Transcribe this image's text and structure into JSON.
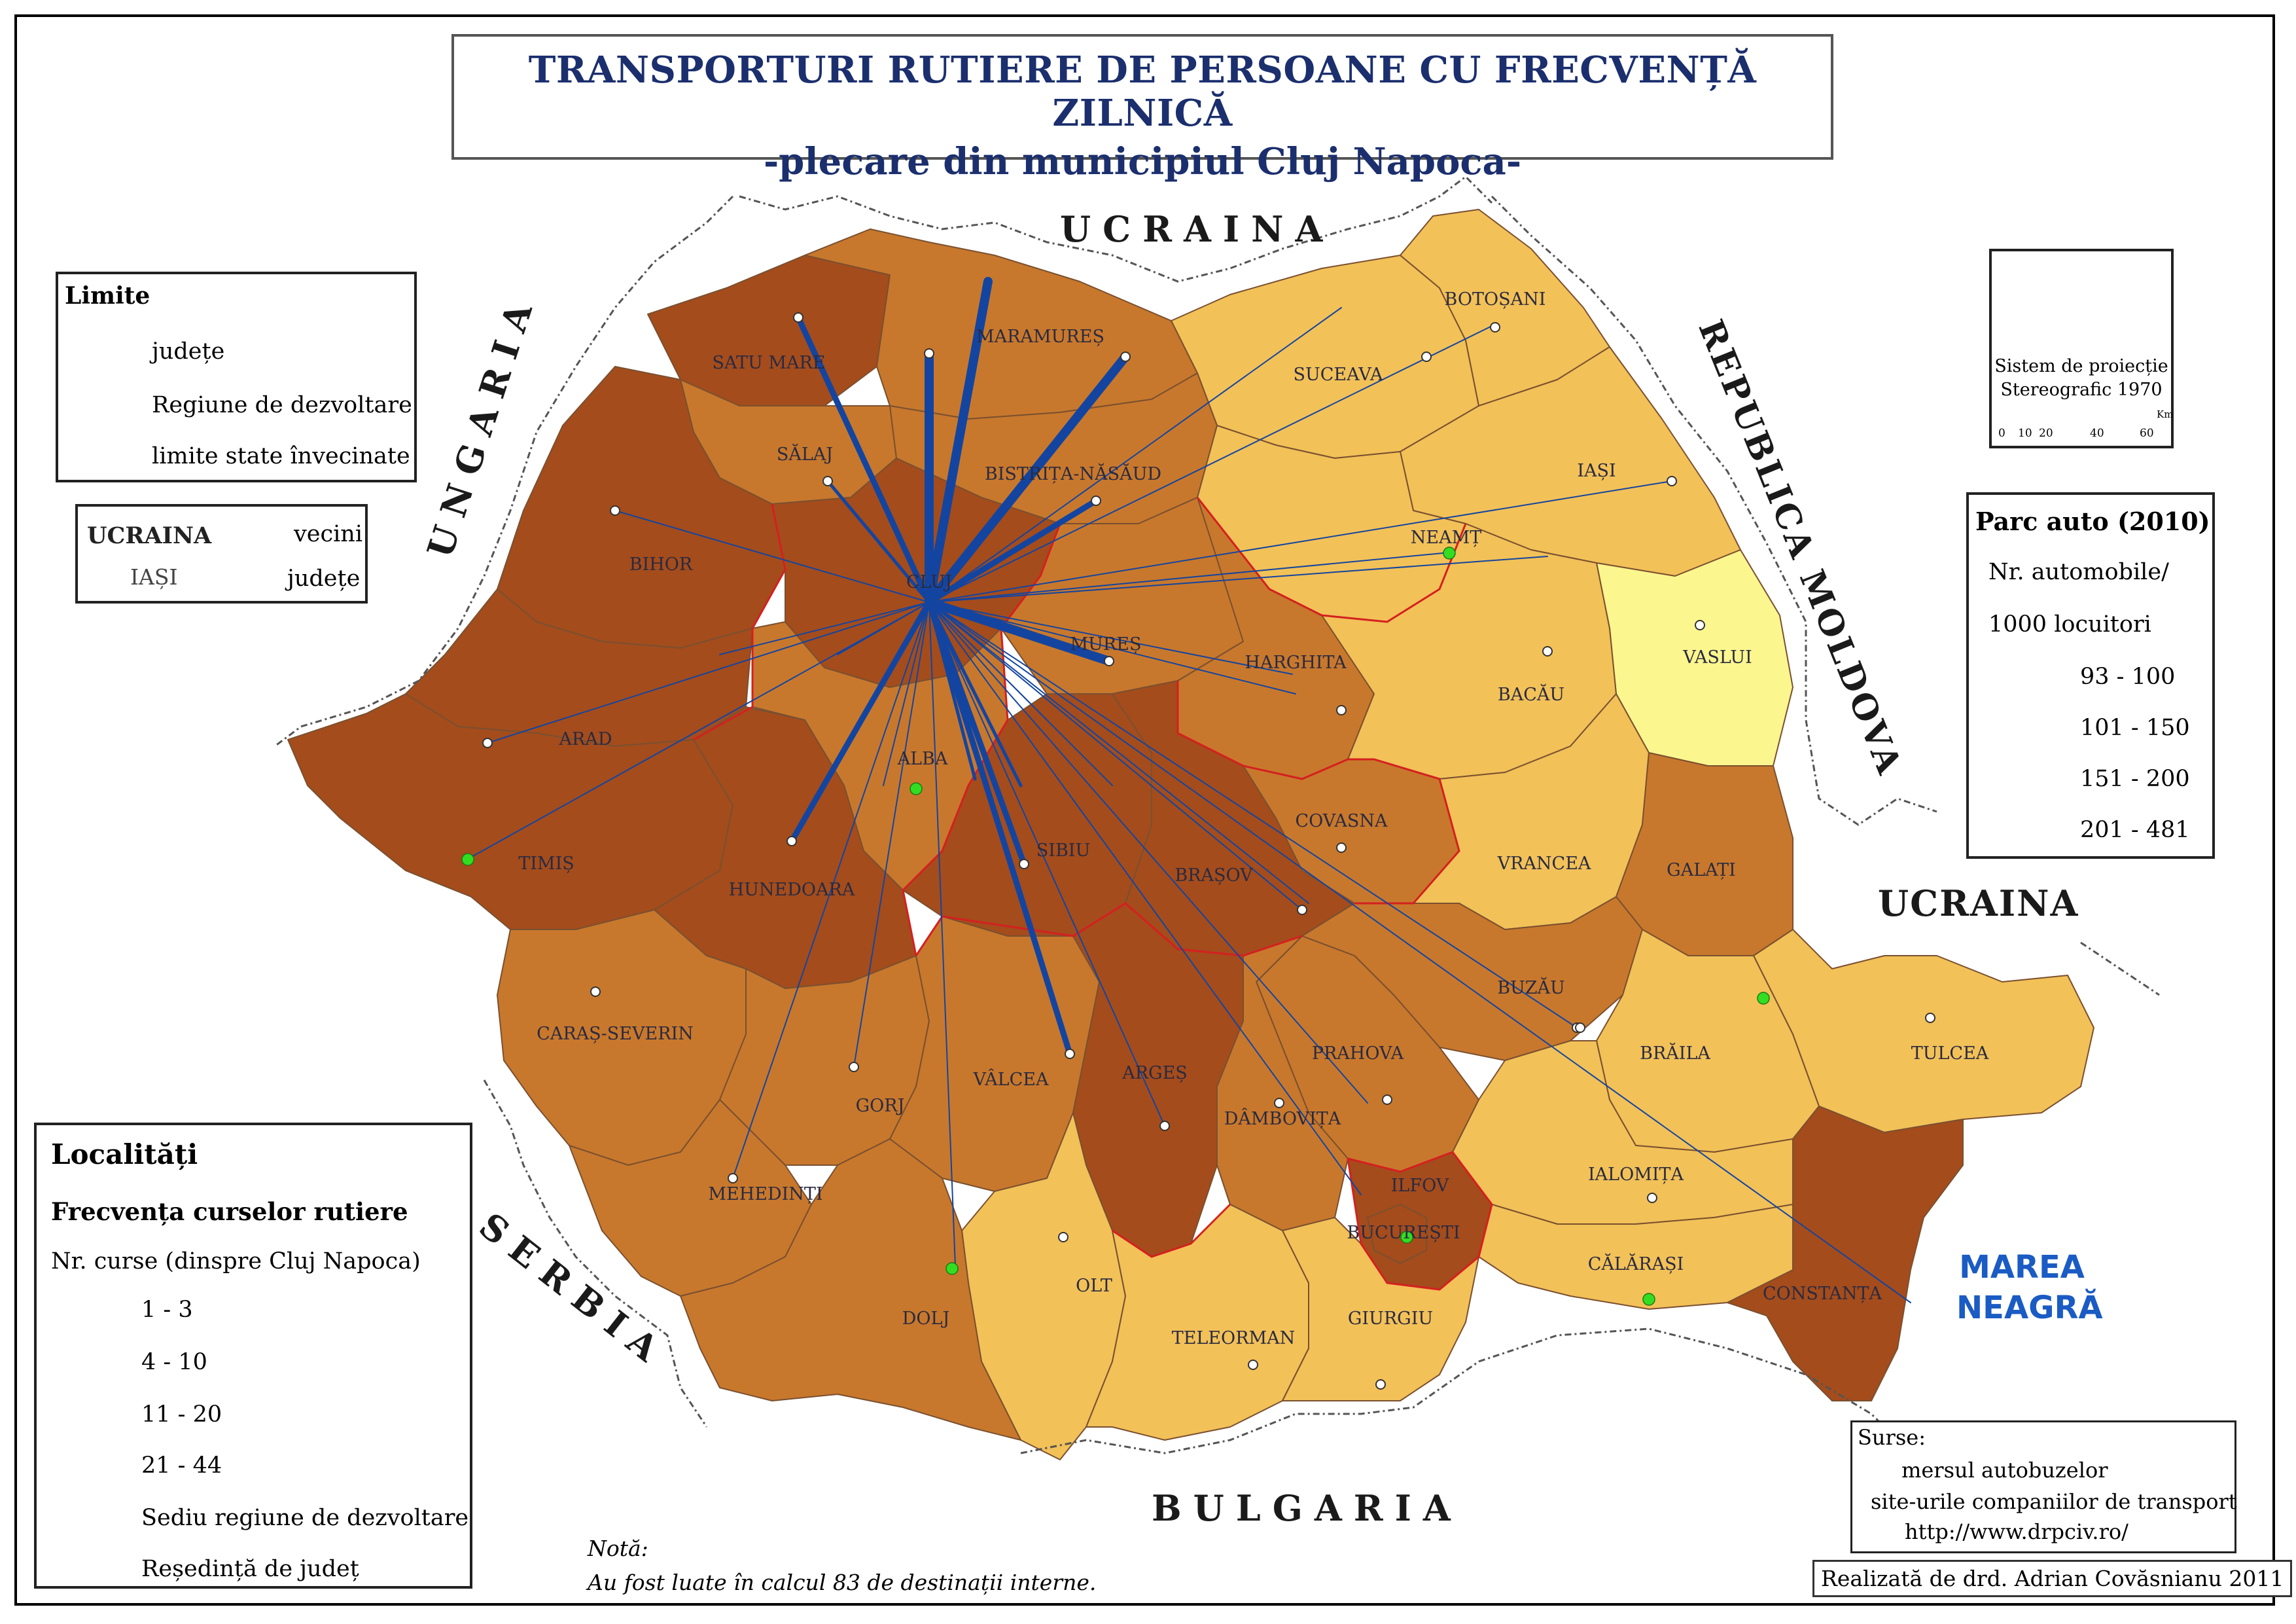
{
  "title": {
    "line1": "TRANSPORTURI RUTIERE DE PERSOANE CU FRECVENȚĂ ZILNICĂ",
    "line2": "-plecare din municipiul Cluj Napoca-"
  },
  "neighbors": {
    "north": "UCRAINA",
    "west": "UNGARIA",
    "east_moldova": "REPUBLICA MOLDOVA",
    "east_ukraine": "UCRAINA",
    "southwest": "SERBIA",
    "south": "BULGARIA",
    "sea": [
      "MAREA",
      "NEAGRĂ"
    ]
  },
  "counties": [
    {
      "name": "SATU MARE",
      "class": "201-481"
    },
    {
      "name": "MARAMUREȘ",
      "class": "151-200"
    },
    {
      "name": "SUCEAVA",
      "class": "101-150"
    },
    {
      "name": "BOTOȘANI",
      "class": "101-150"
    },
    {
      "name": "SĂLAJ",
      "class": "151-200"
    },
    {
      "name": "BISTRIȚA-NĂSĂUD",
      "class": "151-200"
    },
    {
      "name": "IAȘI",
      "class": "101-150"
    },
    {
      "name": "NEAMȚ",
      "class": "101-150"
    },
    {
      "name": "BIHOR",
      "class": "201-481"
    },
    {
      "name": "CLUJ",
      "class": "201-481"
    },
    {
      "name": "VASLUI",
      "class": "93-100"
    },
    {
      "name": "MUREȘ",
      "class": "151-200"
    },
    {
      "name": "HARGHITA",
      "class": "151-200"
    },
    {
      "name": "BACĂU",
      "class": "101-150"
    },
    {
      "name": "ARAD",
      "class": "201-481"
    },
    {
      "name": "ALBA",
      "class": "151-200"
    },
    {
      "name": "COVASNA",
      "class": "151-200"
    },
    {
      "name": "VRANCEA",
      "class": "101-150"
    },
    {
      "name": "GALAȚI",
      "class": "151-200"
    },
    {
      "name": "TIMIȘ",
      "class": "201-481"
    },
    {
      "name": "HUNEDOARA",
      "class": "201-481"
    },
    {
      "name": "SIBIU",
      "class": "201-481"
    },
    {
      "name": "BRAȘOV",
      "class": "201-481"
    },
    {
      "name": "BUZĂU",
      "class": "151-200"
    },
    {
      "name": "TULCEA",
      "class": "101-150"
    },
    {
      "name": "CARAȘ-SEVERIN",
      "class": "151-200"
    },
    {
      "name": "BRĂILA",
      "class": "101-150"
    },
    {
      "name": "GORJ",
      "class": "151-200"
    },
    {
      "name": "VÂLCEA",
      "class": "151-200"
    },
    {
      "name": "ARGEȘ",
      "class": "201-481"
    },
    {
      "name": "PRAHOVA",
      "class": "151-200"
    },
    {
      "name": "DÂMBOVIȚA",
      "class": "151-200"
    },
    {
      "name": "MEHEDINȚI",
      "class": "151-200"
    },
    {
      "name": "IALOMIȚA",
      "class": "101-150"
    },
    {
      "name": "ILFOV",
      "class": "201-481"
    },
    {
      "name": "BUCUREȘTI",
      "class": "201-481"
    },
    {
      "name": "OLT",
      "class": "101-150"
    },
    {
      "name": "CĂLĂRAȘI",
      "class": "101-150"
    },
    {
      "name": "CONSTANȚA",
      "class": "201-481"
    },
    {
      "name": "DOLJ",
      "class": "151-200"
    },
    {
      "name": "TELEORMAN",
      "class": "101-150"
    },
    {
      "name": "GIURGIU",
      "class": "101-150"
    }
  ],
  "legend_limits": {
    "title": "Limite",
    "items": [
      "județe",
      "Regiune de dezvoltare",
      "limite state învecinate"
    ]
  },
  "legend_names": {
    "neighbor_example": "UCRAINA",
    "neighbor_label": "vecini",
    "county_example": "IAȘI",
    "county_label": "județe"
  },
  "legend_parc": {
    "title": "Parc auto (2010)",
    "subtitle1": "Nr. automobile/",
    "subtitle2": "1000 locuitori",
    "classes": [
      {
        "label": "93 - 100",
        "color": "#fbf68e"
      },
      {
        "label": "101 - 150",
        "color": "#f2c158"
      },
      {
        "label": "151 - 200",
        "color": "#c8782c"
      },
      {
        "label": "201 - 481",
        "color": "#a44c1c"
      }
    ]
  },
  "legend_localitati": {
    "title": "Localități",
    "subtitle": "Frecvența curselor rutiere",
    "subtitle2": "Nr. curse (dinspre Cluj Napoca)",
    "classes": [
      "1 - 3",
      "4 - 10",
      "11 - 20",
      "21 - 44"
    ],
    "line_color": "#1345a0",
    "seat_region": "Sediu regiune de dezvoltare",
    "seat_county": "Reședință de județ"
  },
  "projection": {
    "line1": "Sistem de proiecție",
    "line2": "Stereografic 1970",
    "scale_ticks": [
      "0",
      "10",
      "20",
      "40",
      "60"
    ],
    "scale_unit": "Km"
  },
  "note": {
    "label": "Notă:",
    "text": "Au fost luate în calcul 83 de destinații interne."
  },
  "sources": {
    "label": "Surse:",
    "items": [
      "mersul autobuzelor",
      "site-urile companiilor de transport",
      "http://www.drpciv.ro/"
    ]
  },
  "credit": "Realizată de drd. Adrian Covăsnianu 2011",
  "colors": {
    "border_country": "#555555",
    "region_border": "#d42020",
    "seat_region": "#33dd22",
    "title": "#1b2f6e"
  }
}
